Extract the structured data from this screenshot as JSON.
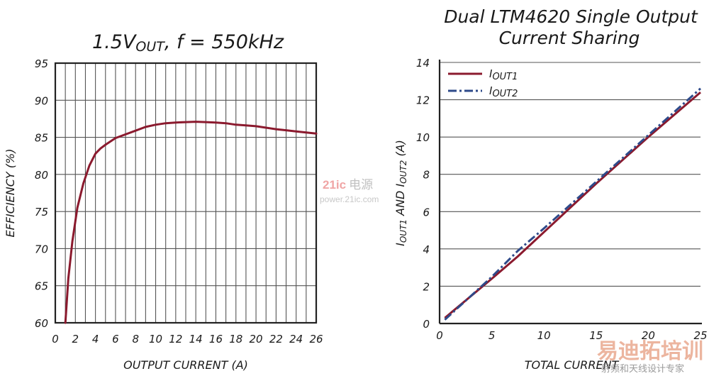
{
  "chart_data": [
    {
      "type": "line",
      "title_main": "1.5V",
      "title_sub": "OUT",
      "title_rest": ", f = 550kHz",
      "xlabel": "OUTPUT CURRENT (A)",
      "ylabel": "EFFICIENCY (%)",
      "xlim": [
        0,
        26
      ],
      "ylim": [
        60,
        95
      ],
      "xticks": [
        "0",
        "2",
        "4",
        "6",
        "8",
        "10",
        "12",
        "14",
        "16",
        "18",
        "20",
        "22",
        "24",
        "26"
      ],
      "yticks": [
        "60",
        "65",
        "70",
        "75",
        "80",
        "85",
        "90",
        "95"
      ],
      "grid": true,
      "series": [
        {
          "name": "Efficiency",
          "color": "#8b1a2e",
          "x": [
            1.0,
            1.3,
            1.7,
            2.2,
            2.8,
            3.4,
            4.0,
            4.5,
            5.0,
            6.0,
            7.0,
            8.0,
            9.0,
            10.0,
            11.0,
            12.0,
            13.0,
            14.0,
            15.0,
            16.0,
            17.0,
            18.0,
            19.0,
            20.0,
            21.0,
            22.0,
            23.0,
            24.0,
            25.0,
            26.0
          ],
          "y": [
            60.0,
            66.0,
            71.0,
            75.5,
            78.8,
            81.2,
            82.8,
            83.5,
            84.0,
            84.9,
            85.4,
            85.9,
            86.4,
            86.7,
            86.9,
            87.0,
            87.05,
            87.1,
            87.05,
            87.0,
            86.9,
            86.7,
            86.6,
            86.5,
            86.3,
            86.1,
            85.95,
            85.8,
            85.65,
            85.5
          ]
        }
      ]
    },
    {
      "type": "line",
      "title_line1": "Dual LTM4620 Single Output",
      "title_line2": "Current Sharing",
      "xlabel": "TOTAL CURRENT",
      "ylabel": "IOUT1 AND IOUT2 (A)",
      "xlim": [
        0,
        25
      ],
      "ylim": [
        0,
        14
      ],
      "xticks": [
        "0",
        "5",
        "10",
        "15",
        "20",
        "25"
      ],
      "yticks": [
        "0",
        "2",
        "4",
        "6",
        "8",
        "10",
        "12",
        "14"
      ],
      "grid": "horizontal",
      "legend_position": "top-left",
      "series": [
        {
          "name": "IOUT1",
          "color": "#8b1a2e",
          "style": "solid",
          "x": [
            0.5,
            5.0,
            7.5,
            10.0,
            15.0,
            20.0,
            25.0
          ],
          "y": [
            0.3,
            2.4,
            3.6,
            4.9,
            7.5,
            10.0,
            12.4
          ]
        },
        {
          "name": "IOUT2",
          "color": "#2e4a8a",
          "style": "dashdot",
          "x": [
            0.5,
            5.0,
            7.5,
            10.0,
            15.0,
            20.0,
            25.0
          ],
          "y": [
            0.2,
            2.5,
            3.9,
            5.1,
            7.6,
            10.1,
            12.6
          ]
        }
      ]
    }
  ],
  "watermarks": {
    "site_logo": "21ic",
    "site_logo_cn": "电源",
    "site_url": "power.21ic.com",
    "brand_cn": "易迪拓培训",
    "brand_sub_cn": "射频和天线设计专家"
  }
}
